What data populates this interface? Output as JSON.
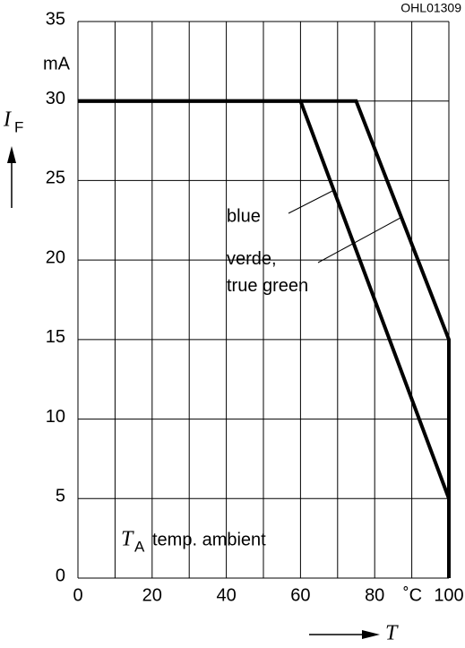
{
  "chart_data": {
    "type": "line",
    "code": "OHL01309",
    "ylabel": "I",
    "ylabel_sub": "F",
    "yunit": "mA",
    "xlabel": "T",
    "xunit": "˚C",
    "annotation": "T",
    "annotation_sub": "A",
    "annotation_text": "temp. ambient",
    "xlim": [
      0,
      100
    ],
    "ylim": [
      0,
      35
    ],
    "xticks": [
      0,
      20,
      40,
      60,
      80,
      100
    ],
    "minor_xticks": [
      10,
      30,
      50,
      70,
      90
    ],
    "yticks": [
      0,
      5,
      10,
      15,
      20,
      25,
      30,
      35
    ],
    "grid": true,
    "series": [
      {
        "name": "blue",
        "color": "#000000",
        "x": [
          0,
          60,
          100,
          100
        ],
        "values": [
          30,
          30,
          5,
          0
        ]
      },
      {
        "name": "verde, true green",
        "color": "#000000",
        "x": [
          0,
          75,
          100,
          100
        ],
        "values": [
          30,
          30,
          15,
          0
        ]
      }
    ]
  }
}
